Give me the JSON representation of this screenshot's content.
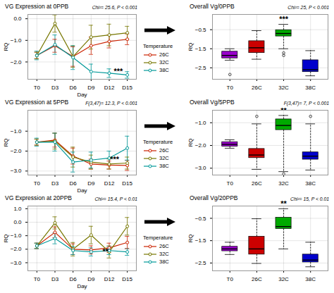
{
  "chart_data": [
    {
      "type": "line",
      "title": "VG Expression at 0PPB",
      "subtitle": "Chi²= 25.6, P < 0.001",
      "xlabel": "Day",
      "ylabel": "RQ",
      "categories": [
        "T0",
        "D3",
        "D6",
        "D9",
        "D12",
        "D15"
      ],
      "series": [
        {
          "name": "26C",
          "color": "#cc2200",
          "values": [
            -1.7,
            -1.25,
            -1.75,
            -1.25,
            -1.05,
            -0.95
          ],
          "errors": [
            0.15,
            0.3,
            0.45,
            0.4,
            0.3,
            0.25
          ]
        },
        {
          "name": "32C",
          "color": "#777700",
          "values": [
            -1.7,
            -0.22,
            -1.75,
            -0.85,
            -0.75,
            -0.65
          ],
          "errors": [
            0.15,
            0.4,
            0.5,
            0.55,
            0.5,
            0.3
          ]
        },
        {
          "name": "38C",
          "color": "#009999",
          "values": [
            -1.7,
            -1.2,
            -1.8,
            -2.45,
            -2.52,
            -2.6
          ],
          "errors": [
            0.2,
            0.45,
            0.55,
            0.35,
            0.2,
            0.15
          ]
        }
      ],
      "ylim": [
        -2.8,
        0.2
      ],
      "yticks": [
        0,
        -1,
        -2
      ],
      "grid": true,
      "marker": "o",
      "legend": "right",
      "legend_title": "Temperature",
      "annotations": [
        {
          "text": "***",
          "x": 4.5,
          "y": -2.55
        }
      ]
    },
    {
      "type": "box",
      "title": "Overall Vg/0PPB",
      "subtitle": "Chi²= 25, P < 0.001",
      "ylabel": "RQ",
      "categories": [
        "T0",
        "26C",
        "32C",
        "38C"
      ],
      "colors": [
        "#9900cc",
        "#cc0000",
        "#00aa00",
        "#0000cc"
      ],
      "boxes": [
        {
          "q1": -2.0,
          "median": -1.85,
          "q3": -1.65,
          "whislo": -2.1,
          "whishi": -1.5,
          "fliers": [
            -2.85
          ]
        },
        {
          "q1": -1.72,
          "median": -1.45,
          "q3": -1.1,
          "whislo": -2.05,
          "whishi": -0.55,
          "fliers": []
        },
        {
          "q1": -0.85,
          "median": -0.7,
          "q3": -0.52,
          "whislo": -1.5,
          "whishi": -0.22,
          "fliers": [
            -1.72,
            -1.85
          ]
        },
        {
          "q1": -2.72,
          "median": -2.6,
          "q3": -2.1,
          "whislo": -2.92,
          "whishi": -1.6,
          "fliers": []
        }
      ],
      "ylim": [
        -3.1,
        0.3
      ],
      "yticks": [
        -0.5,
        -1.5,
        -2.5
      ],
      "grid": true,
      "annotations": [
        {
          "text": "***",
          "category": "32C",
          "y": -0.101
        }
      ]
    },
    {
      "type": "line",
      "title": "VG Expression at 5PPB",
      "subtitle": "F(3,47)= 12.3, P < 0.001",
      "xlabel": "Day",
      "ylabel": "RQ",
      "categories": [
        "T0",
        "D3",
        "D6",
        "D9",
        "D12",
        "D15"
      ],
      "series": [
        {
          "name": "26C",
          "color": "#cc2200",
          "values": [
            -1.55,
            -1.45,
            -2.25,
            -2.65,
            -2.7,
            -2.72
          ],
          "errors": [
            0.15,
            0.35,
            0.4,
            0.25,
            0.2,
            0.25
          ]
        },
        {
          "name": "32C",
          "color": "#777700",
          "values": [
            -1.55,
            -1.5,
            -2.3,
            -2.55,
            -2.65,
            -2.6
          ],
          "errors": [
            0.15,
            0.4,
            0.5,
            0.35,
            0.25,
            0.3
          ]
        },
        {
          "name": "38C",
          "color": "#009999",
          "values": [
            -1.55,
            -1.55,
            -2.55,
            -2.45,
            -2.35,
            -1.85
          ],
          "errors": [
            0.2,
            0.45,
            0.5,
            0.4,
            0.35,
            0.6
          ]
        }
      ],
      "ylim": [
        -3.2,
        0.05
      ],
      "yticks": [
        -1,
        -2,
        -3
      ],
      "grid": true,
      "marker": "o",
      "legend": "right",
      "legend_title": "Temperature",
      "annotations": [
        {
          "text": "***",
          "x": 4.3,
          "y": -2.55
        }
      ]
    },
    {
      "type": "box",
      "title": "Overall Vg/5PPB",
      "subtitle": "F(3,47)= 7, P < 0.001",
      "ylabel": "RQ",
      "categories": [
        "T0",
        "26C",
        "32C",
        "38C"
      ],
      "colors": [
        "#9900cc",
        "#cc0000",
        "#00aa00",
        "#0000cc"
      ],
      "boxes": [
        {
          "q1": -2.05,
          "median": -1.95,
          "q3": -1.85,
          "whislo": -2.12,
          "whishi": -1.75,
          "fliers": []
        },
        {
          "q1": -2.55,
          "median": -2.42,
          "q3": -2.15,
          "whislo": -3.05,
          "whishi": -1.05,
          "fliers": [
            -0.72
          ]
        },
        {
          "q1": -1.32,
          "median": -1.12,
          "q3": -0.85,
          "whislo": -3.15,
          "whishi": -0.68,
          "fliers": [
            -3.25
          ]
        },
        {
          "q1": -2.62,
          "median": -2.47,
          "q3": -2.3,
          "whislo": -3.08,
          "whishi": -1.05,
          "fliers": [
            -0.72
          ]
        }
      ],
      "ylim": [
        -3.3,
        -0.45
      ],
      "yticks": [
        -1,
        -2,
        -3
      ],
      "grid": true,
      "annotations": [
        {
          "text": "**",
          "category": "32C",
          "y": -0.58025
        }
      ]
    },
    {
      "type": "line",
      "title": "VG Expression at 20PPB",
      "subtitle": "Chi²= 15.4, P < 0.01",
      "xlabel": "Day",
      "ylabel": "RQ",
      "categories": [
        "T0",
        "D3",
        "D6",
        "D9",
        "D12",
        "D15"
      ],
      "series": [
        {
          "name": "26C",
          "color": "#cc2200",
          "values": [
            -1.75,
            -0.75,
            -2.0,
            -2.05,
            -1.9,
            -1.5
          ],
          "errors": [
            0.2,
            0.4,
            0.4,
            0.3,
            0.35,
            0.45
          ]
        },
        {
          "name": "32C",
          "color": "#777700",
          "values": [
            -1.75,
            -0.05,
            -2.0,
            -0.95,
            -2.2,
            -0.3
          ],
          "errors": [
            0.2,
            0.45,
            0.5,
            0.65,
            0.45,
            0.65
          ]
        },
        {
          "name": "38C",
          "color": "#009999",
          "values": [
            -1.75,
            -1.2,
            -2.1,
            -2.2,
            -2.1,
            -2.2
          ],
          "errors": [
            0.2,
            0.4,
            0.3,
            0.3,
            0.3,
            0.25
          ]
        }
      ],
      "ylim": [
        -3.6,
        1.2
      ],
      "yticks": [
        1,
        0,
        -1,
        -2,
        -3
      ],
      "grid": true,
      "marker": "o",
      "legend": "right",
      "legend_title": "Temperature",
      "annotations": [
        {
          "text": "**",
          "x": 3.8,
          "y": -2.35
        }
      ]
    },
    {
      "type": "box",
      "title": "Overall Vg/20PPB",
      "subtitle": "Chi²= 15, P < 0.01",
      "ylabel": "RQ",
      "categories": [
        "T0",
        "26C",
        "32C",
        "38C"
      ],
      "colors": [
        "#9900cc",
        "#cc0000",
        "#00aa00",
        "#0000cc"
      ],
      "boxes": [
        {
          "q1": -1.97,
          "median": -1.87,
          "q3": -1.77,
          "whislo": -2.12,
          "whishi": -1.57,
          "fliers": []
        },
        {
          "q1": -2.12,
          "median": -1.87,
          "q3": -1.32,
          "whislo": -2.52,
          "whishi": -0.52,
          "fliers": []
        },
        {
          "q1": -0.97,
          "median": -0.87,
          "q3": -0.47,
          "whislo": -1.87,
          "whishi": -0.07,
          "fliers": []
        },
        {
          "q1": -2.47,
          "median": -2.37,
          "q3": -2.12,
          "whislo": -2.67,
          "whishi": -1.57,
          "fliers": []
        }
      ],
      "ylim": [
        -2.85,
        0.05
      ],
      "yticks": [
        -0.5,
        -1.5,
        -2.5
      ],
      "grid": true,
      "annotations": [
        {
          "text": "**",
          "category": "32C",
          "y": 0.0315
        }
      ]
    }
  ]
}
